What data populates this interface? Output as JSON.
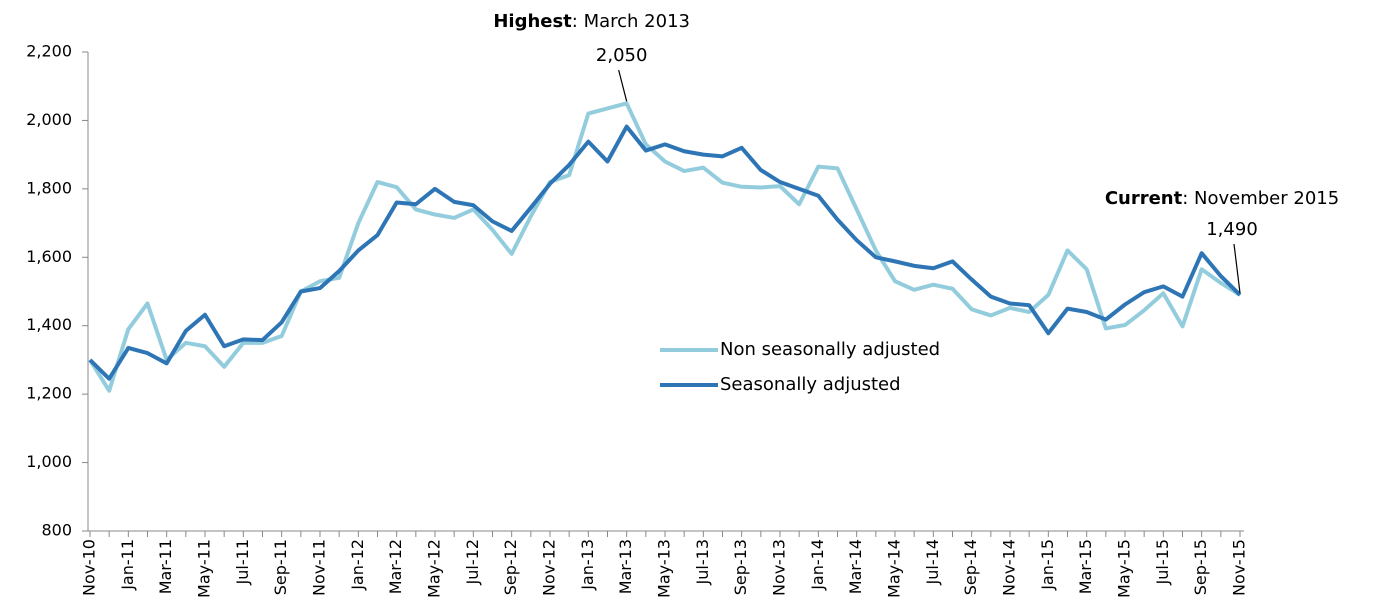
{
  "chart_data": {
    "type": "line",
    "categories": [
      "Nov-10",
      null,
      "Jan-11",
      null,
      "Mar-11",
      null,
      "May-11",
      null,
      "Jul-11",
      null,
      "Sep-11",
      null,
      "Nov-11",
      null,
      "Jan-12",
      null,
      "Mar-12",
      null,
      "May-12",
      null,
      "Jul-12",
      null,
      "Sep-12",
      null,
      "Nov-12",
      null,
      "Jan-13",
      null,
      "Mar-13",
      null,
      "May-13",
      null,
      "Jul-13",
      null,
      "Sep-13",
      null,
      "Nov-13",
      null,
      "Jan-14",
      null,
      "Mar-14",
      null,
      "May-14",
      null,
      "Jul-14",
      null,
      "Sep-14",
      null,
      "Nov-14",
      null,
      "Jan-15",
      null,
      "Mar-15",
      null,
      "May-15",
      null,
      "Jul-15",
      null,
      "Sep-15",
      null,
      "Nov-15"
    ],
    "series": [
      {
        "name": "Non seasonally adjusted",
        "color": "#93cddd",
        "values": [
          1300,
          1210,
          1390,
          1465,
          1300,
          1350,
          1340,
          1280,
          1350,
          1350,
          1370,
          1500,
          1530,
          1540,
          1700,
          1820,
          1805,
          1740,
          1725,
          1715,
          1740,
          1680,
          1610,
          1720,
          1820,
          1840,
          2020,
          2035,
          2050,
          1930,
          1880,
          1852,
          1862,
          1818,
          1806,
          1804,
          1808,
          1755,
          1865,
          1860,
          1740,
          1620,
          1530,
          1505,
          1520,
          1508,
          1448,
          1430,
          1452,
          1440,
          1490,
          1620,
          1565,
          1392,
          1402,
          1445,
          1495,
          1398,
          1565,
          1525,
          1490
        ]
      },
      {
        "name": "Seasonally adjusted",
        "color": "#2e75b6",
        "values": [
          1300,
          1245,
          1335,
          1320,
          1290,
          1385,
          1432,
          1340,
          1360,
          1358,
          1410,
          1500,
          1510,
          1560,
          1620,
          1665,
          1760,
          1755,
          1800,
          1762,
          1752,
          1705,
          1677,
          1745,
          1815,
          1870,
          1938,
          1880,
          1982,
          1912,
          1930,
          1910,
          1900,
          1895,
          1920,
          1855,
          1820,
          1800,
          1780,
          1710,
          1650,
          1600,
          1588,
          1575,
          1568,
          1588,
          1535,
          1485,
          1465,
          1460,
          1378,
          1450,
          1440,
          1418,
          1462,
          1498,
          1515,
          1485,
          1612,
          1545,
          1490
        ]
      }
    ],
    "ylim": [
      800,
      2200
    ],
    "yticks": [
      800,
      {
        "value": 1000,
        "label": "1,000"
      },
      {
        "value": 1200,
        "label": "1,200"
      },
      {
        "value": 1400,
        "label": "1,400"
      },
      {
        "value": 1600,
        "label": "1,600"
      },
      {
        "value": 1800,
        "label": "1,800"
      },
      {
        "value": 2000,
        "label": "2,000"
      },
      {
        "value": 2200,
        "label": "2,200"
      }
    ],
    "annotations": [
      {
        "bold": "Highest",
        "text": ": March 2013",
        "value": 2050,
        "label": "2,050"
      },
      {
        "bold": "Current",
        "text": ": November 2015",
        "value": 1490,
        "label": "1,490"
      }
    ]
  }
}
